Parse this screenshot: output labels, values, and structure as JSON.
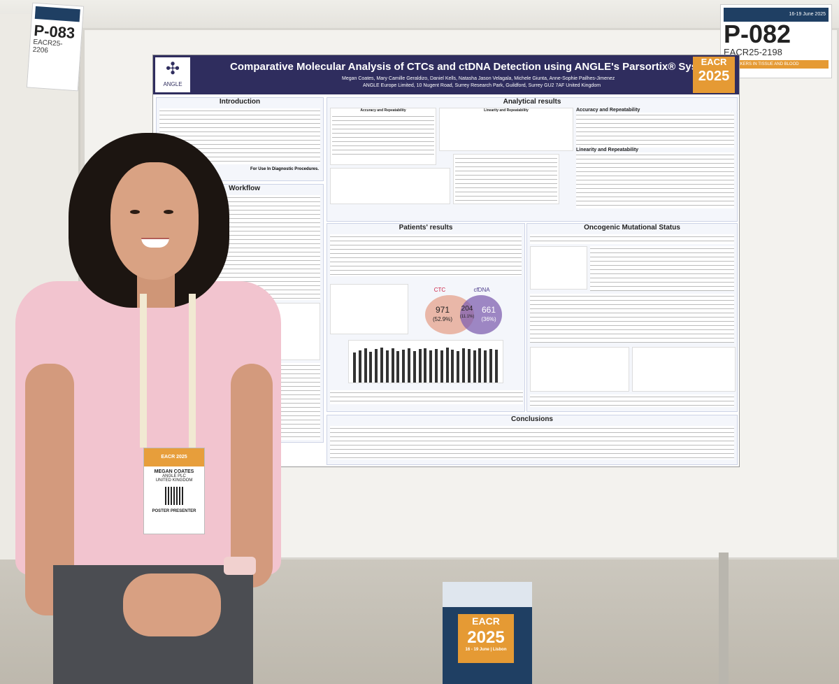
{
  "poster": {
    "title": "Comparative Molecular Analysis of CTCs and ctDNA Detection using ANGLE's Parsortix® System",
    "authors": "Megan Coates, Mary Camille Geraldizo, Daniel Kells, Natasha Jason Velagala, Michele Giunta, Anne-Sophie Pailhes-Jimenez",
    "affiliation": "ANGLE Europe Limited, 10 Nugent Road, Surrey Research Park, Guildford, Surrey GU2 7AF United Kingdom",
    "logo_text": "ANGLE",
    "eacr_label": "EACR",
    "eacr_year": "2025",
    "sections": {
      "introduction": "Introduction",
      "workflow": "Workflow",
      "analytical": "Analytical results",
      "accuracy": "Accuracy and Repeatability",
      "linearity": "Linearity and Repeatability",
      "patients": "Patients' results",
      "oncogenic": "Oncogenic Mutational Status",
      "conclusions": "Conclusions"
    },
    "intro_note": "For Use In Diagnostic Procedures.",
    "venn": {
      "ctc_label": "CTC",
      "cfdna_label": "cfDNA",
      "ctc_only": "971",
      "ctc_only_pct": "(52.9%)",
      "shared": "204",
      "shared_pct": "(11.1%)",
      "cfdna_only": "661",
      "cfdna_only_pct": "(36%)"
    }
  },
  "tags": {
    "left_num": "P-083",
    "left_code": "EACR25-2206",
    "right_num": "P-082",
    "right_code": "EACR25-2198",
    "right_header": "16-19 June 2025",
    "right_footer": "BIOMARKERS IN TISSUE AND BLOOD"
  },
  "badge": {
    "event": "EACR 2025",
    "name": "MEGAN COATES",
    "org": "ANGLE PLC",
    "country": "UNITED KINGDOM",
    "role": "POSTER PRESENTER"
  },
  "cube": {
    "label": "EACR",
    "year": "2025",
    "dates": "16 - 19 June | Lisbon"
  },
  "colors": {
    "poster_header": "#2f2d5e",
    "eacr_orange": "#e59a34",
    "shirt": "#f2c4cf"
  }
}
